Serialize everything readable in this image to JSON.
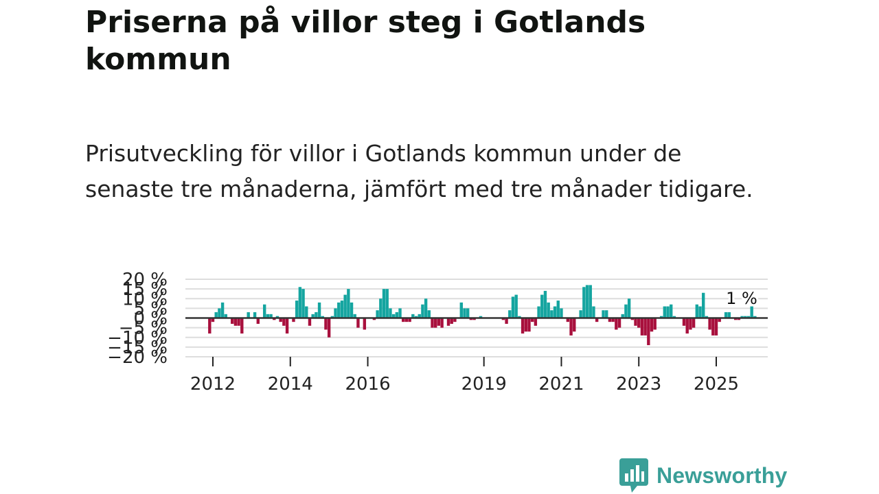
{
  "title": "Priserna på villor steg i Gotlands kommun",
  "subtitle": "Prisutveckling för villor i Gotlands kommun under de senaste tre månaderna, jämfört med tre månader tidigare.",
  "brand": "Newsworthy",
  "colors": {
    "positive": "#15a5a0",
    "negative": "#a8103d",
    "brand": "#3a9f98",
    "grid": "#dddddd",
    "zero_line": "#333333"
  },
  "chart_data": {
    "type": "bar",
    "title": "",
    "xlabel": "",
    "ylabel": "",
    "ylim": [
      -20,
      20
    ],
    "y_ticks": [
      20,
      15,
      10,
      5,
      0,
      -5,
      -10,
      -15,
      -20
    ],
    "y_tick_labels": [
      "20 %",
      "15 %",
      "10 %",
      "5 %",
      "0 %",
      "−5 %",
      "−10 %",
      "−15 %",
      "−20 %"
    ],
    "x_ticks": [
      {
        "year": 2012,
        "label": "2012"
      },
      {
        "year": 2014,
        "label": "2014"
      },
      {
        "year": 2016,
        "label": "2016"
      },
      {
        "year": 2019,
        "label": "2019"
      },
      {
        "year": 2021,
        "label": "2021"
      },
      {
        "year": 2023,
        "label": "2023"
      },
      {
        "year": 2025,
        "label": "2025"
      }
    ],
    "start": "2011-12",
    "interval": "month",
    "series": [
      {
        "name": "Prisutveckling",
        "values": [
          -8,
          -2,
          3,
          5,
          8,
          2,
          0,
          -3,
          -4,
          -4,
          -8,
          0,
          3,
          0,
          3,
          -3,
          0,
          7,
          2,
          2,
          -1,
          1,
          -2,
          -4,
          -8,
          0,
          -2,
          9,
          16,
          15,
          6,
          -4,
          2,
          3,
          8,
          1,
          -6,
          -10,
          1,
          5,
          8,
          9,
          12,
          15,
          8,
          2,
          -5,
          0,
          -6,
          0,
          0,
          -1,
          4,
          10,
          15,
          15,
          5,
          2,
          3,
          5,
          -2,
          -2,
          -2,
          2,
          1,
          2,
          7,
          10,
          4,
          -5,
          -5,
          -4,
          -5,
          0,
          -4,
          -3,
          -2,
          0,
          8,
          5,
          5,
          -1,
          -1,
          0,
          1,
          0,
          0,
          0,
          0,
          0,
          0,
          -1,
          -3,
          4,
          11,
          12,
          1,
          -8,
          -7,
          -7,
          -2,
          -4,
          6,
          12,
          14,
          8,
          4,
          6,
          9,
          5,
          0,
          -2,
          -9,
          -7,
          0,
          4,
          16,
          17,
          17,
          6,
          -2,
          0,
          4,
          4,
          -2,
          -2,
          -6,
          -5,
          2,
          7,
          10,
          -1,
          -4,
          -5,
          -9,
          -9,
          -14,
          -7,
          -6,
          0,
          1,
          6,
          6,
          7,
          1,
          0,
          0,
          -4,
          -8,
          -6,
          -5,
          7,
          6,
          13,
          1,
          -6,
          -9,
          -9,
          -2,
          0,
          3,
          3,
          0,
          -1,
          -1,
          1,
          1,
          1,
          6,
          1
        ]
      }
    ],
    "annotations": [
      {
        "text": "1 %",
        "at_index": 169
      }
    ]
  }
}
